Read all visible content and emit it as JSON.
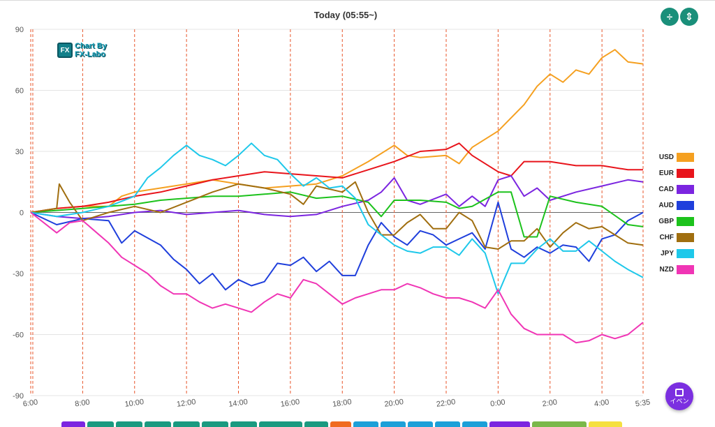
{
  "header": {
    "title": "Today  (05:55~)"
  },
  "logo": {
    "badge": "FX",
    "line1": "Chart By",
    "line2": "FX-Labo"
  },
  "controls": {
    "compress_icon": "compress-vertical-icon",
    "expand_icon": "expand-vertical-icon",
    "event_label": "イベン",
    "event_icon": "calendar-icon"
  },
  "chart_data": {
    "type": "line",
    "title": "Today  (05:55~)",
    "xlabel": "",
    "ylabel": "",
    "ylim": [
      -90,
      90
    ],
    "yticks": [
      90,
      60,
      30,
      0,
      -30,
      -60,
      -90
    ],
    "xlim": [
      6.0,
      29.583
    ],
    "xticks": [
      {
        "x": 6.0,
        "label": "6:00"
      },
      {
        "x": 8,
        "label": "8:00"
      },
      {
        "x": 10,
        "label": "10:00"
      },
      {
        "x": 12,
        "label": "12:00"
      },
      {
        "x": 14,
        "label": "14:00"
      },
      {
        "x": 16,
        "label": "16:00"
      },
      {
        "x": 18,
        "label": "18:00"
      },
      {
        "x": 20,
        "label": "20:00"
      },
      {
        "x": 22,
        "label": "22:00"
      },
      {
        "x": 24,
        "label": "0:00"
      },
      {
        "x": 26,
        "label": "2:00"
      },
      {
        "x": 28,
        "label": "4:00"
      },
      {
        "x": 29.583,
        "label": "5:35"
      }
    ],
    "vlines": [
      6.0,
      6.08,
      8,
      10,
      12,
      14,
      16,
      18,
      20,
      22,
      24,
      26,
      28,
      29.583
    ],
    "legend_position": "right",
    "series": [
      {
        "name": "USD",
        "color": "#f5a020",
        "x": [
          6.0,
          7,
          8,
          9,
          9.5,
          10,
          11,
          12,
          13,
          14,
          15,
          16,
          17,
          18,
          19,
          20,
          20.5,
          21,
          22,
          22.5,
          23,
          24,
          25,
          25.5,
          26,
          26.5,
          27,
          27.5,
          28,
          28.5,
          29,
          29.583
        ],
        "y": [
          0,
          2,
          3,
          3,
          8,
          10,
          12,
          14,
          16,
          14,
          12,
          13,
          14,
          18,
          25,
          33,
          28,
          27,
          28,
          24,
          32,
          40,
          53,
          62,
          68,
          64,
          70,
          68,
          76,
          80,
          74,
          73
        ]
      },
      {
        "name": "EUR",
        "color": "#e8141b",
        "x": [
          6.0,
          7,
          8,
          9,
          10,
          11,
          12,
          13,
          14,
          15,
          16,
          17,
          18,
          19,
          20,
          21,
          22,
          22.5,
          23,
          24,
          24.5,
          25,
          26,
          27,
          28,
          29,
          29.583
        ],
        "y": [
          0,
          2,
          3,
          5,
          8,
          10,
          13,
          16,
          18,
          20,
          19,
          18,
          17,
          21,
          25,
          30,
          31,
          34,
          28,
          20,
          18,
          25,
          25,
          23,
          23,
          21,
          21
        ]
      },
      {
        "name": "CAD",
        "color": "#7b25e0",
        "x": [
          6.0,
          7,
          8,
          9,
          10,
          11,
          12,
          13,
          14,
          15,
          16,
          17,
          18,
          19,
          19.5,
          20,
          20.5,
          21,
          22,
          22.5,
          23,
          23.5,
          24,
          24.5,
          25,
          25.5,
          26,
          27,
          28,
          29,
          29.583
        ],
        "y": [
          0,
          -2,
          -3,
          -2,
          0,
          1,
          -1,
          0,
          1,
          -1,
          -2,
          -1,
          3,
          6,
          10,
          17,
          6,
          4,
          9,
          3,
          8,
          3,
          16,
          18,
          8,
          12,
          6,
          10,
          13,
          16,
          15
        ]
      },
      {
        "name": "AUD",
        "color": "#1f3fdc",
        "x": [
          6.0,
          7,
          8,
          9,
          9.5,
          10,
          11,
          11.5,
          12,
          12.5,
          13,
          13.5,
          14,
          14.5,
          15,
          15.5,
          16,
          16.5,
          17,
          17.5,
          18,
          18.5,
          19,
          19.5,
          20,
          20.5,
          21,
          21.5,
          22,
          22.5,
          23,
          23.5,
          24,
          24.5,
          25,
          25.5,
          26,
          26.5,
          27,
          27.5,
          28,
          28.5,
          29,
          29.583
        ],
        "y": [
          0,
          -6,
          -3,
          -4,
          -15,
          -9,
          -16,
          -23,
          -28,
          -35,
          -30,
          -38,
          -33,
          -36,
          -34,
          -25,
          -26,
          -22,
          -29,
          -24,
          -31,
          -31,
          -16,
          -5,
          -12,
          -16,
          -9,
          -11,
          -16,
          -13,
          -10,
          -18,
          5,
          -18,
          -22,
          -17,
          -20,
          -16,
          -17,
          -24,
          -13,
          -11,
          -4,
          0
        ]
      },
      {
        "name": "GBP",
        "color": "#1cc21c",
        "x": [
          6.0,
          7,
          8,
          9,
          10,
          11,
          12,
          13,
          14,
          15,
          16,
          17,
          18,
          19,
          19.5,
          20,
          21,
          22,
          22.5,
          23,
          24,
          24.5,
          25,
          25.5,
          26,
          27,
          28,
          29,
          29.583
        ],
        "y": [
          0,
          1,
          2,
          3,
          4,
          6,
          7,
          8,
          8,
          9,
          10,
          7,
          8,
          5,
          -2,
          6,
          6,
          5,
          2,
          3,
          10,
          10,
          -12,
          -12,
          8,
          5,
          3,
          -6,
          -7
        ]
      },
      {
        "name": "CHF",
        "color": "#a06e0f",
        "x": [
          6.0,
          7,
          7.1,
          7.5,
          8,
          9,
          10,
          11,
          12,
          13,
          14,
          15,
          16,
          16.5,
          17,
          18,
          18.5,
          19,
          19.5,
          20,
          20.5,
          21,
          21.5,
          22,
          22.5,
          23,
          23.5,
          24,
          24.5,
          25,
          25.5,
          26,
          26.5,
          27,
          27.5,
          28,
          28.5,
          29,
          29.583
        ],
        "y": [
          0,
          2,
          14,
          5,
          -4,
          0,
          3,
          0,
          5,
          10,
          14,
          12,
          9,
          4,
          13,
          10,
          15,
          0,
          -11,
          -11,
          -5,
          -1,
          -8,
          -8,
          0,
          -4,
          -17,
          -18,
          -14,
          -14,
          -8,
          -17,
          -10,
          -5,
          -8,
          -7,
          -11,
          -15,
          -16
        ]
      },
      {
        "name": "JPY",
        "color": "#1ec8ea",
        "x": [
          6.0,
          7,
          8,
          9,
          10,
          10.5,
          11,
          11.5,
          12,
          12.5,
          13,
          13.5,
          14,
          14.5,
          15,
          15.5,
          16,
          16.5,
          17,
          17.5,
          18,
          18.5,
          19,
          19.5,
          20,
          20.5,
          21,
          21.5,
          22,
          22.5,
          23,
          23.5,
          24,
          24.5,
          25,
          25.5,
          26,
          26.5,
          27,
          27.5,
          28,
          28.5,
          29,
          29.583
        ],
        "y": [
          0,
          -2,
          0,
          3,
          8,
          17,
          22,
          28,
          33,
          28,
          26,
          23,
          28,
          34,
          28,
          26,
          19,
          13,
          17,
          12,
          13,
          7,
          -6,
          -11,
          -16,
          -19,
          -20,
          -17,
          -17,
          -21,
          -13,
          -20,
          -40,
          -25,
          -25,
          -18,
          -13,
          -19,
          -19,
          -14,
          -19,
          -24,
          -28,
          -32
        ]
      },
      {
        "name": "NZD",
        "color": "#f035b5",
        "x": [
          6.0,
          7,
          7.5,
          8,
          9,
          9.5,
          10,
          10.5,
          11,
          11.5,
          12,
          12.5,
          13,
          13.5,
          14,
          14.5,
          15,
          15.5,
          16,
          16.5,
          17,
          17.5,
          18,
          18.5,
          19,
          19.5,
          20,
          20.5,
          21,
          21.5,
          22,
          22.5,
          23,
          23.5,
          24,
          24.5,
          25,
          25.5,
          26,
          26.5,
          27,
          27.5,
          28,
          28.5,
          29,
          29.583
        ],
        "y": [
          0,
          -10,
          -5,
          -4,
          -15,
          -22,
          -26,
          -30,
          -36,
          -40,
          -40,
          -44,
          -47,
          -45,
          -47,
          -49,
          -44,
          -40,
          -42,
          -33,
          -35,
          -40,
          -45,
          -42,
          -40,
          -38,
          -38,
          -35,
          -37,
          -40,
          -42,
          -42,
          -44,
          -47,
          -38,
          -50,
          -57,
          -60,
          -60,
          -60,
          -64,
          -63,
          -60,
          -62,
          -60,
          -54
        ]
      }
    ]
  },
  "bottom_tabs": [
    {
      "color": "#7b25e0",
      "w": 34
    },
    {
      "color": "#1a9a80",
      "w": 38
    },
    {
      "color": "#1a9a80",
      "w": 38
    },
    {
      "color": "#1a9a80",
      "w": 38
    },
    {
      "color": "#1a9a80",
      "w": 38
    },
    {
      "color": "#1a9a80",
      "w": 38
    },
    {
      "color": "#1a9a80",
      "w": 38
    },
    {
      "color": "#1a9a80",
      "w": 62
    },
    {
      "color": "#1a9a80",
      "w": 34
    },
    {
      "color": "#f06b20",
      "w": 30
    },
    {
      "color": "#1ca0d8",
      "w": 36
    },
    {
      "color": "#1ca0d8",
      "w": 36
    },
    {
      "color": "#1ca0d8",
      "w": 36
    },
    {
      "color": "#1ca0d8",
      "w": 36
    },
    {
      "color": "#1ca0d8",
      "w": 36
    },
    {
      "color": "#7b25e0",
      "w": 58
    },
    {
      "color": "#7ab84a",
      "w": 78
    },
    {
      "color": "#f5e040",
      "w": 48
    }
  ]
}
